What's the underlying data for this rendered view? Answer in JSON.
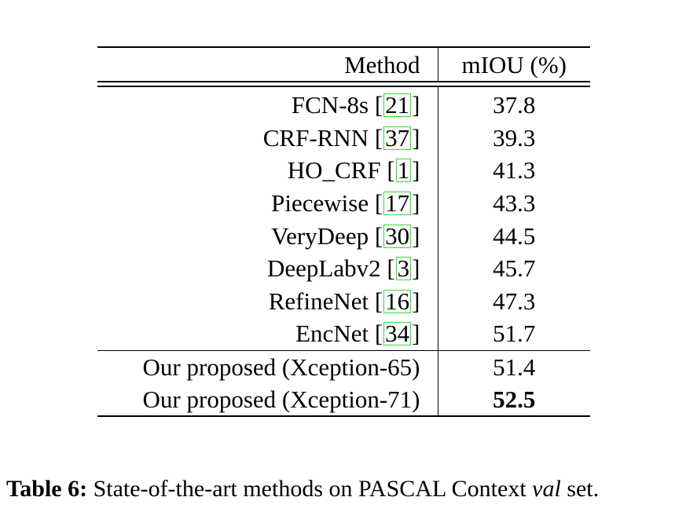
{
  "table": {
    "header": {
      "method": "Method",
      "miou": "mIOU (%)"
    },
    "rows": [
      {
        "name": "FCN-8s",
        "cite": "21",
        "miou": "37.8"
      },
      {
        "name": "CRF-RNN",
        "cite": "37",
        "miou": "39.3"
      },
      {
        "name": "HO_CRF",
        "cite": "1",
        "miou": "41.3"
      },
      {
        "name": "Piecewise",
        "cite": "17",
        "miou": "43.3"
      },
      {
        "name": "VeryDeep",
        "cite": "30",
        "miou": "44.5"
      },
      {
        "name": "DeepLabv2",
        "cite": "3",
        "miou": "45.7"
      },
      {
        "name": "RefineNet",
        "cite": "16",
        "miou": "47.3"
      },
      {
        "name": "EncNet",
        "cite": "34",
        "miou": "51.7"
      }
    ],
    "proposed": [
      {
        "name": "Our proposed (Xception-65)",
        "miou": "51.4",
        "bold": false
      },
      {
        "name": "Our proposed (Xception-71)",
        "miou": "52.5",
        "bold": true
      }
    ]
  },
  "caption": {
    "label": "Table 6:",
    "text_before": "State-of-the-art methods on PASCAL Context",
    "italic": "val",
    "text_after": "set."
  }
}
